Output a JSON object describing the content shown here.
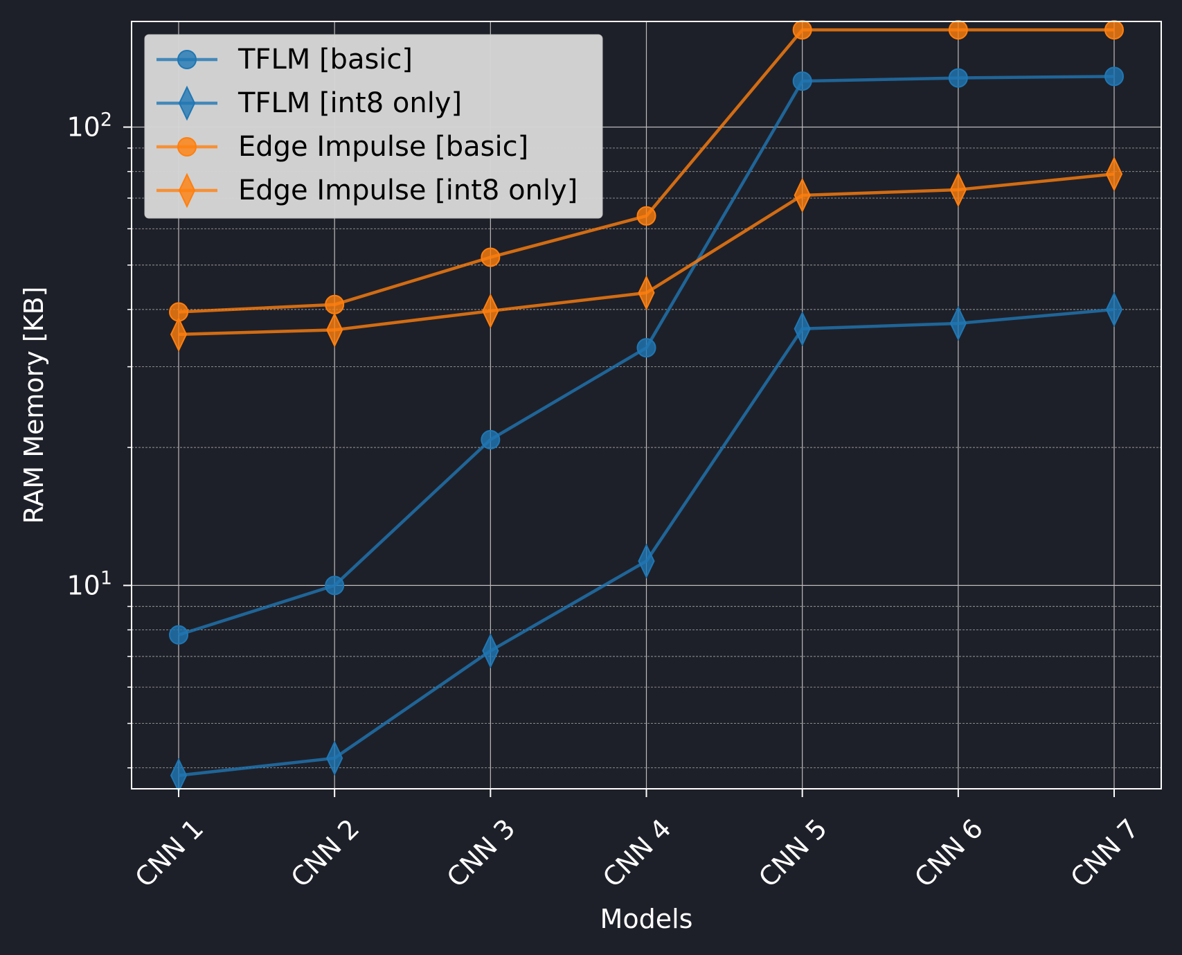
{
  "chart_data": {
    "type": "line",
    "xlabel": "Models",
    "ylabel": "RAM Memory [KB]",
    "yscale": "log",
    "ylim": [
      3.6,
      170
    ],
    "grid": true,
    "legend_position": "top-left",
    "categories": [
      "CNN 1",
      "CNN 2",
      "CNN 3",
      "CNN 4",
      "CNN 5",
      "CNN 6",
      "CNN 7"
    ],
    "y_ticks": [
      {
        "value": 10,
        "base": "10",
        "exp": "1"
      },
      {
        "value": 100,
        "base": "10",
        "exp": "2"
      }
    ],
    "series": [
      {
        "name": "TFLM [basic]",
        "marker": "circle",
        "color": "#1f77b4",
        "values": [
          7.8,
          10.0,
          20.8,
          33.0,
          126.0,
          128.0,
          129.0
        ]
      },
      {
        "name": "TFLM [int8 only]",
        "marker": "diamond",
        "color": "#1f77b4",
        "values": [
          3.85,
          4.2,
          7.2,
          11.3,
          36.3,
          37.3,
          40.0
        ]
      },
      {
        "name": "Edge Impulse [basic]",
        "marker": "circle",
        "color": "#ff7f0e",
        "values": [
          39.5,
          41.0,
          52.0,
          64.0,
          163.0,
          163.0,
          163.0
        ]
      },
      {
        "name": "Edge Impulse [int8 only]",
        "marker": "diamond",
        "color": "#ff7f0e",
        "values": [
          35.3,
          36.1,
          39.7,
          43.5,
          71.0,
          73.0,
          79.0
        ]
      }
    ]
  }
}
